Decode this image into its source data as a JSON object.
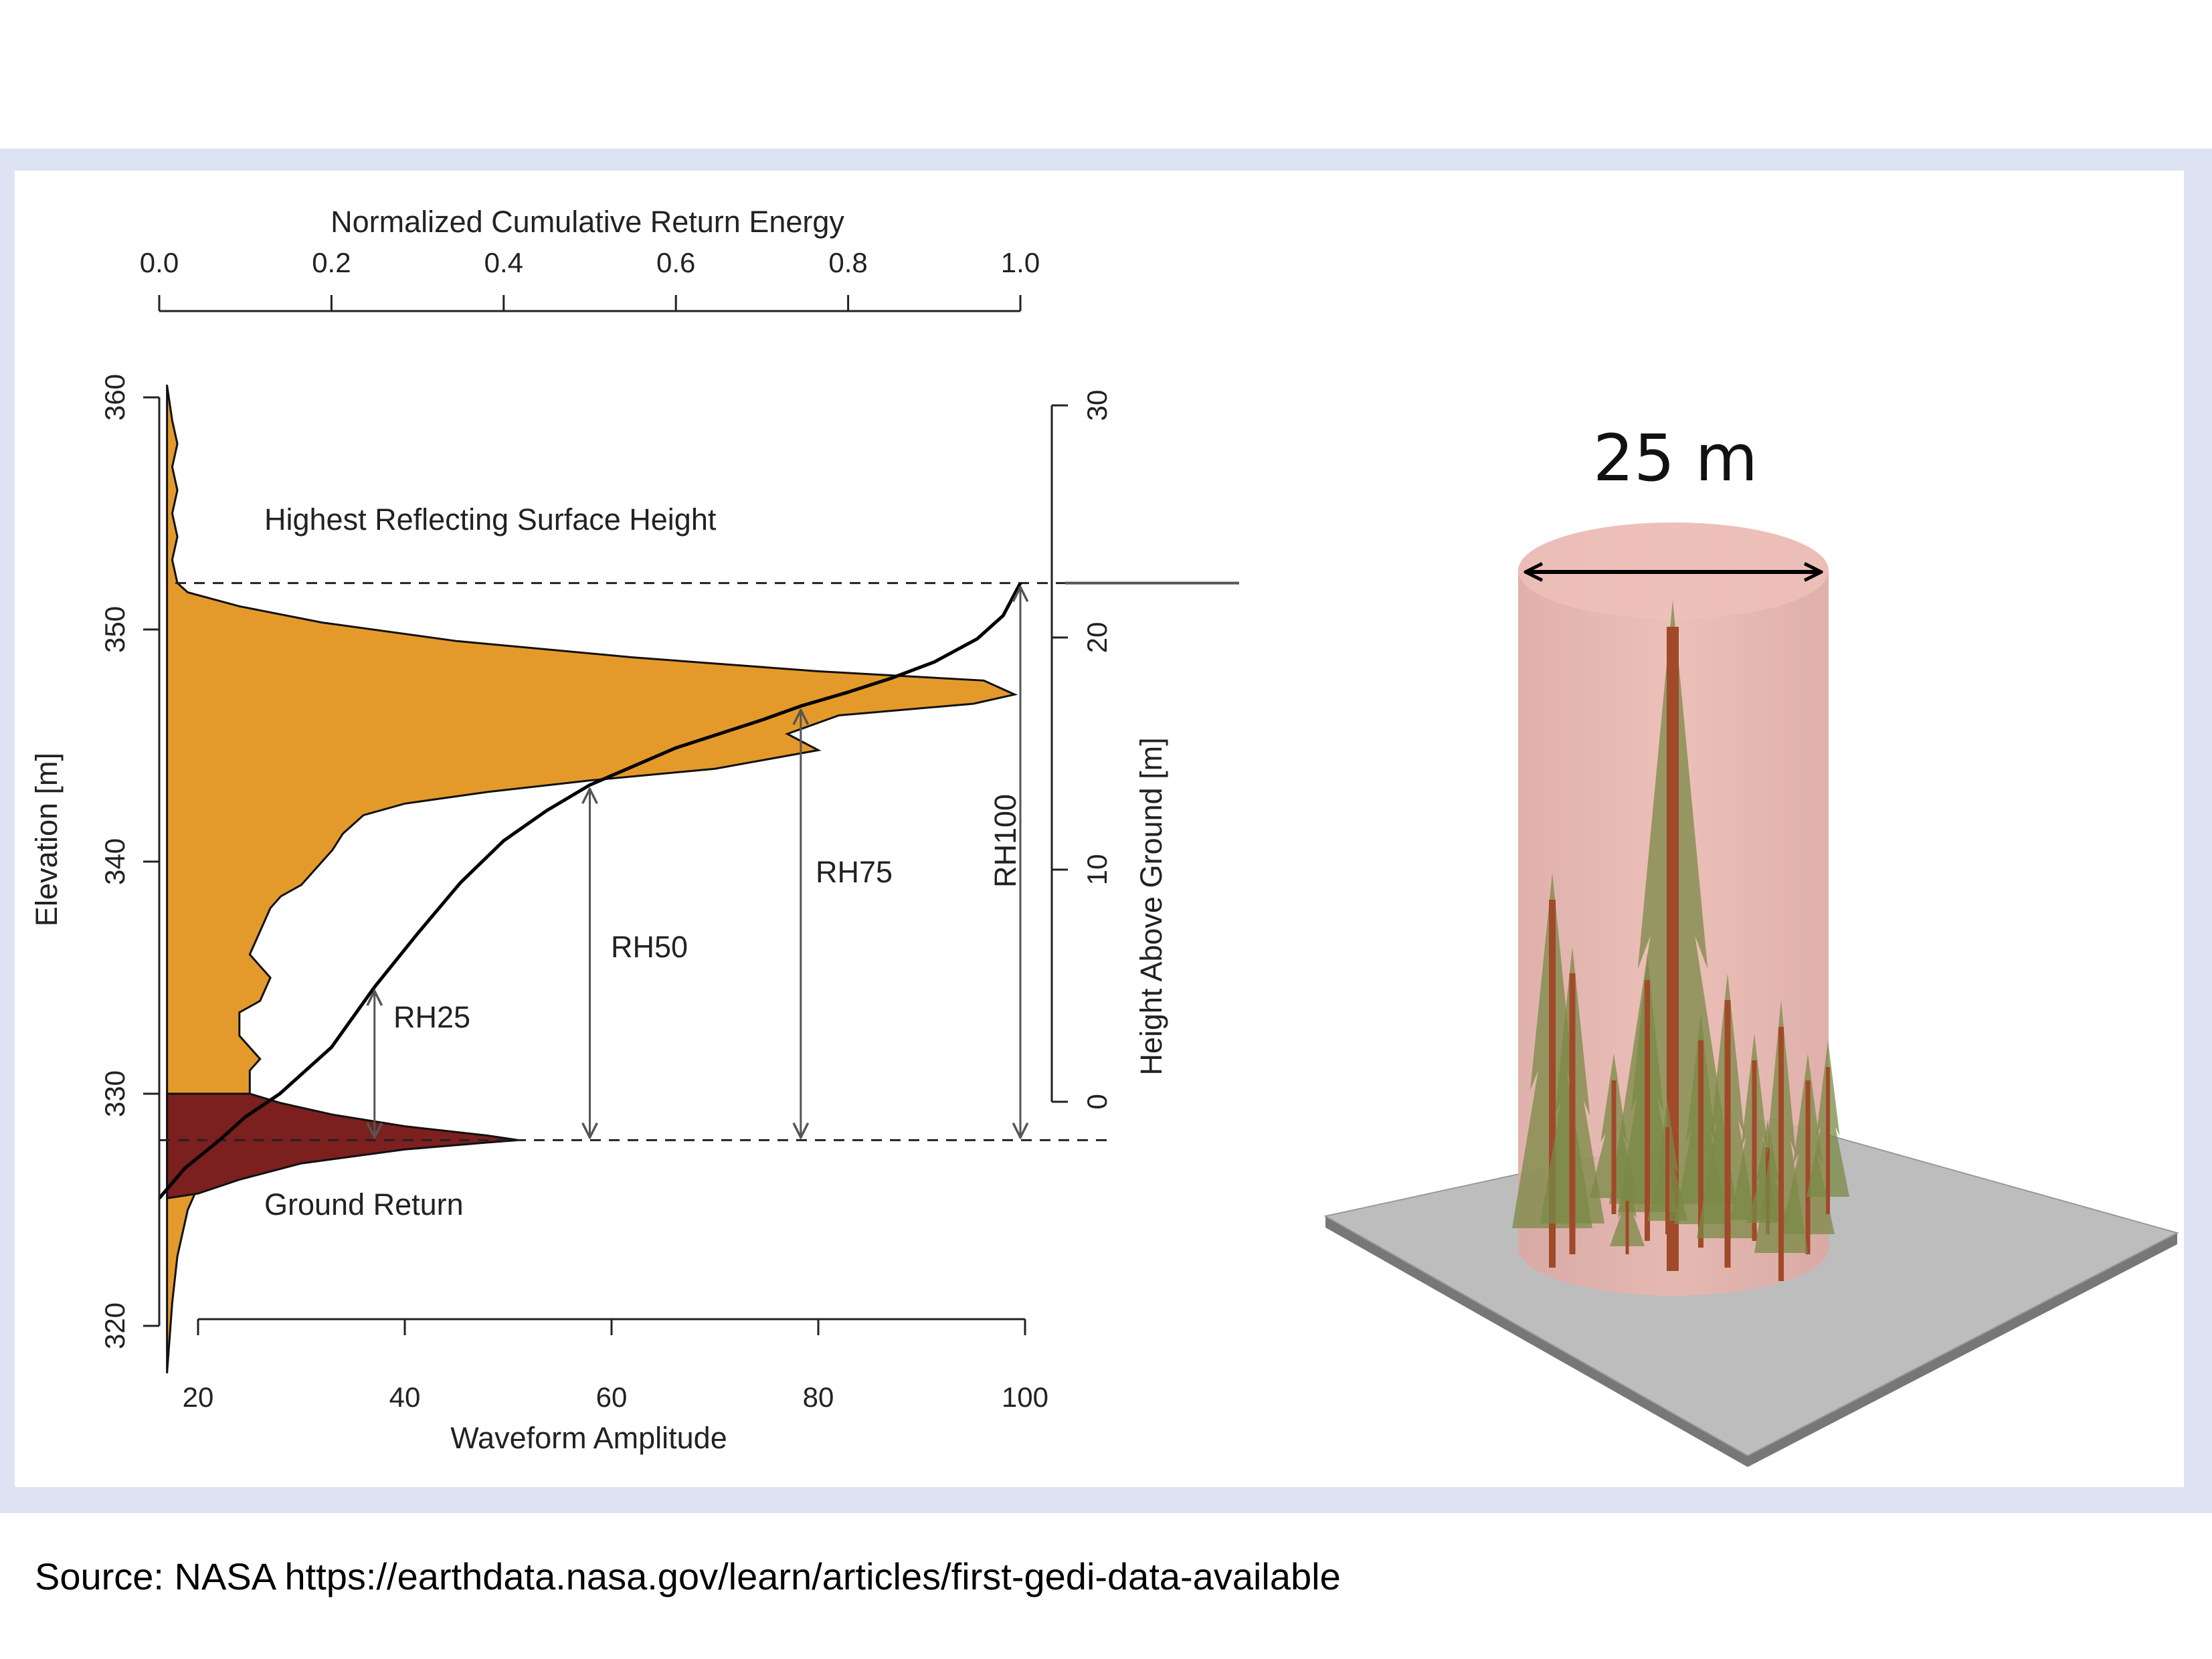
{
  "figure": {
    "source_text": "Source: NASA https://earthdata.nasa.gov/learn/articles/first-gedi-data-available",
    "diagram_label": "25 m"
  },
  "chart_data": {
    "type": "area",
    "top_axis": {
      "label": "Normalized Cumulative Return Energy",
      "ticks": [
        "0.0",
        "0.2",
        "0.4",
        "0.6",
        "0.8",
        "1.0"
      ],
      "range": [
        0,
        1
      ]
    },
    "bottom_axis": {
      "label": "Waveform Amplitude",
      "ticks": [
        "20",
        "40",
        "60",
        "80",
        "100"
      ],
      "range": [
        20,
        100
      ]
    },
    "left_axis": {
      "label": "Elevation [m]",
      "ticks": [
        "320",
        "330",
        "340",
        "350",
        "360"
      ],
      "range": [
        318,
        361
      ]
    },
    "right_axis": {
      "label": "Height Above Ground [m]",
      "ticks": [
        "0",
        "10",
        "20",
        "30"
      ],
      "range": [
        0,
        30
      ]
    },
    "annotations": {
      "hrs": "Highest Reflecting Surface Height",
      "ground": "Ground Return",
      "rh25": "RH25",
      "rh50": "RH50",
      "rh75": "RH75",
      "rh100": "RH100"
    },
    "ground_elevation": 328,
    "highest_surface_elevation": 352,
    "rh_markers": [
      {
        "name": "RH25",
        "energy": 0.25,
        "elevation": 334.6
      },
      {
        "name": "RH50",
        "energy": 0.5,
        "elevation": 343.3
      },
      {
        "name": "RH75",
        "energy": 0.745,
        "elevation": 346.7
      },
      {
        "name": "RH100",
        "energy": 1.0,
        "elevation": 352.0
      }
    ],
    "canopy_waveform": {
      "name": "Canopy waveform",
      "color": "#e49a2b",
      "points": [
        [
          17,
          318
        ],
        [
          17.5,
          321
        ],
        [
          18,
          323
        ],
        [
          19,
          325
        ],
        [
          20,
          326
        ],
        [
          22,
          327.5
        ],
        [
          24,
          329
        ],
        [
          25,
          330
        ],
        [
          25,
          331
        ],
        [
          26,
          331.5
        ],
        [
          25,
          332
        ],
        [
          24,
          332.5
        ],
        [
          24,
          333.5
        ],
        [
          26,
          334
        ],
        [
          27,
          335
        ],
        [
          25,
          336
        ],
        [
          26,
          337
        ],
        [
          27,
          338
        ],
        [
          28,
          338.5
        ],
        [
          30,
          339
        ],
        [
          32,
          340
        ],
        [
          33,
          340.5
        ],
        [
          34,
          341.2
        ],
        [
          36,
          342
        ],
        [
          40,
          342.5
        ],
        [
          48,
          343
        ],
        [
          58,
          343.5
        ],
        [
          70,
          344
        ],
        [
          80,
          344.8
        ],
        [
          77,
          345.5
        ],
        [
          82,
          346.3
        ],
        [
          95,
          346.8
        ],
        [
          99,
          347.2
        ],
        [
          96,
          347.8
        ],
        [
          80,
          348.2
        ],
        [
          62,
          348.8
        ],
        [
          45,
          349.5
        ],
        [
          32,
          350.3
        ],
        [
          24,
          351
        ],
        [
          19,
          351.6
        ],
        [
          18,
          352
        ],
        [
          17.5,
          353
        ],
        [
          18,
          354
        ],
        [
          17.5,
          355
        ],
        [
          18,
          356
        ],
        [
          17.5,
          357
        ],
        [
          18,
          358
        ],
        [
          17.5,
          359
        ],
        [
          17,
          360.5
        ]
      ]
    },
    "ground_waveform": {
      "name": "Ground return",
      "color": "#7b1f1f",
      "points": [
        [
          17,
          325.5
        ],
        [
          20,
          325.7
        ],
        [
          24,
          326.3
        ],
        [
          30,
          327.0
        ],
        [
          40,
          327.6
        ],
        [
          48,
          327.9
        ],
        [
          51,
          328.0
        ],
        [
          48,
          328.2
        ],
        [
          40,
          328.6
        ],
        [
          33,
          329.1
        ],
        [
          28,
          329.6
        ],
        [
          25,
          330.0
        ],
        [
          17,
          330.0
        ]
      ]
    },
    "cumulative_curve": {
      "name": "Cumulative return energy",
      "points": [
        [
          0.0,
          325.5
        ],
        [
          0.03,
          326.8
        ],
        [
          0.07,
          328.0
        ],
        [
          0.1,
          329.0
        ],
        [
          0.14,
          330.0
        ],
        [
          0.2,
          332.0
        ],
        [
          0.25,
          334.6
        ],
        [
          0.3,
          336.9
        ],
        [
          0.35,
          339.1
        ],
        [
          0.4,
          340.9
        ],
        [
          0.45,
          342.2
        ],
        [
          0.5,
          343.3
        ],
        [
          0.6,
          344.9
        ],
        [
          0.7,
          346.1
        ],
        [
          0.745,
          346.7
        ],
        [
          0.8,
          347.3
        ],
        [
          0.85,
          347.9
        ],
        [
          0.9,
          348.6
        ],
        [
          0.95,
          349.6
        ],
        [
          0.98,
          350.6
        ],
        [
          1.0,
          352.0
        ]
      ]
    }
  }
}
